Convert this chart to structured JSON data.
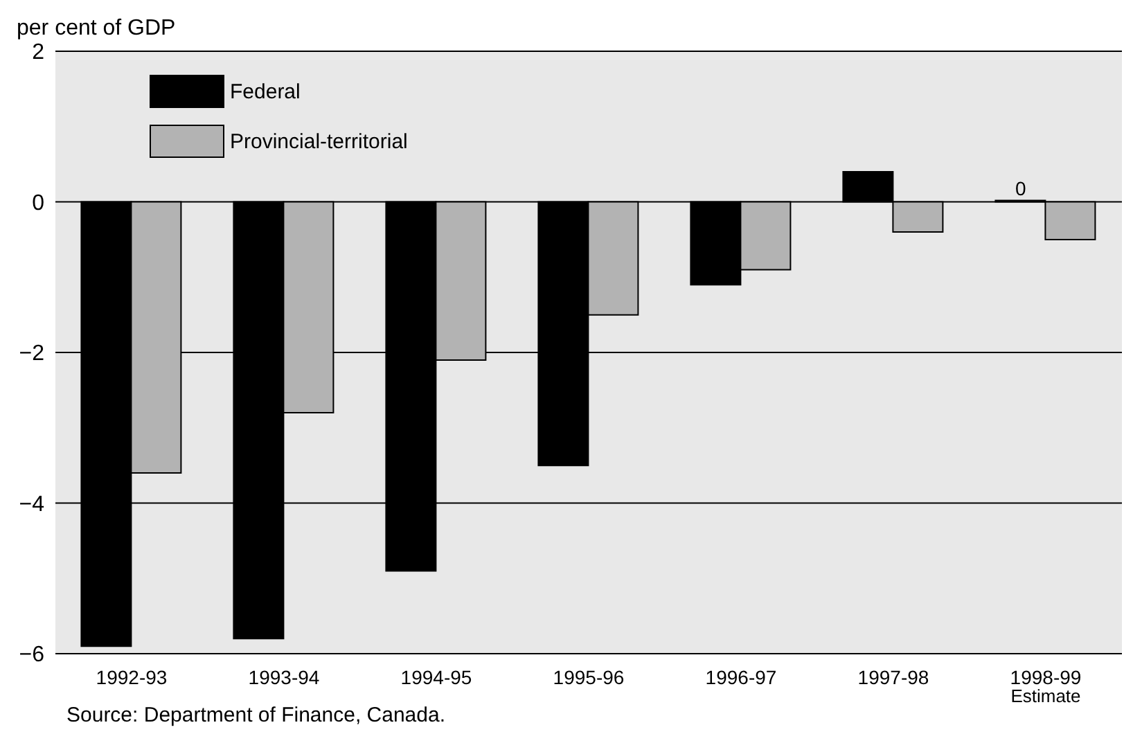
{
  "chart_data": {
    "type": "bar",
    "ylabel": "per cent of GDP",
    "categories": [
      "1992-93",
      "1993-94",
      "1994-95",
      "1995-96",
      "1996-97",
      "1997-98",
      "1998-99\nEstimate"
    ],
    "series": [
      {
        "name": "Federal",
        "color": "#000000",
        "values": [
          -5.9,
          -5.8,
          -4.9,
          -3.5,
          -1.1,
          0.4,
          0
        ],
        "value_labels": [
          null,
          null,
          null,
          null,
          null,
          null,
          "0"
        ]
      },
      {
        "name": "Provincial-territorial",
        "color": "#b3b3b3",
        "values": [
          -3.6,
          -2.8,
          -2.1,
          -1.5,
          -0.9,
          -0.4,
          -0.5
        ]
      }
    ],
    "ylim": [
      -6,
      2
    ],
    "yticks": [
      {
        "value": -6,
        "label": "−6"
      },
      {
        "value": -4,
        "label": "−4"
      },
      {
        "value": -2,
        "label": "−2"
      },
      0,
      2
    ],
    "grid": "y",
    "legend": "top left",
    "annotations": [
      "Source: Department of Finance, Canada."
    ]
  }
}
